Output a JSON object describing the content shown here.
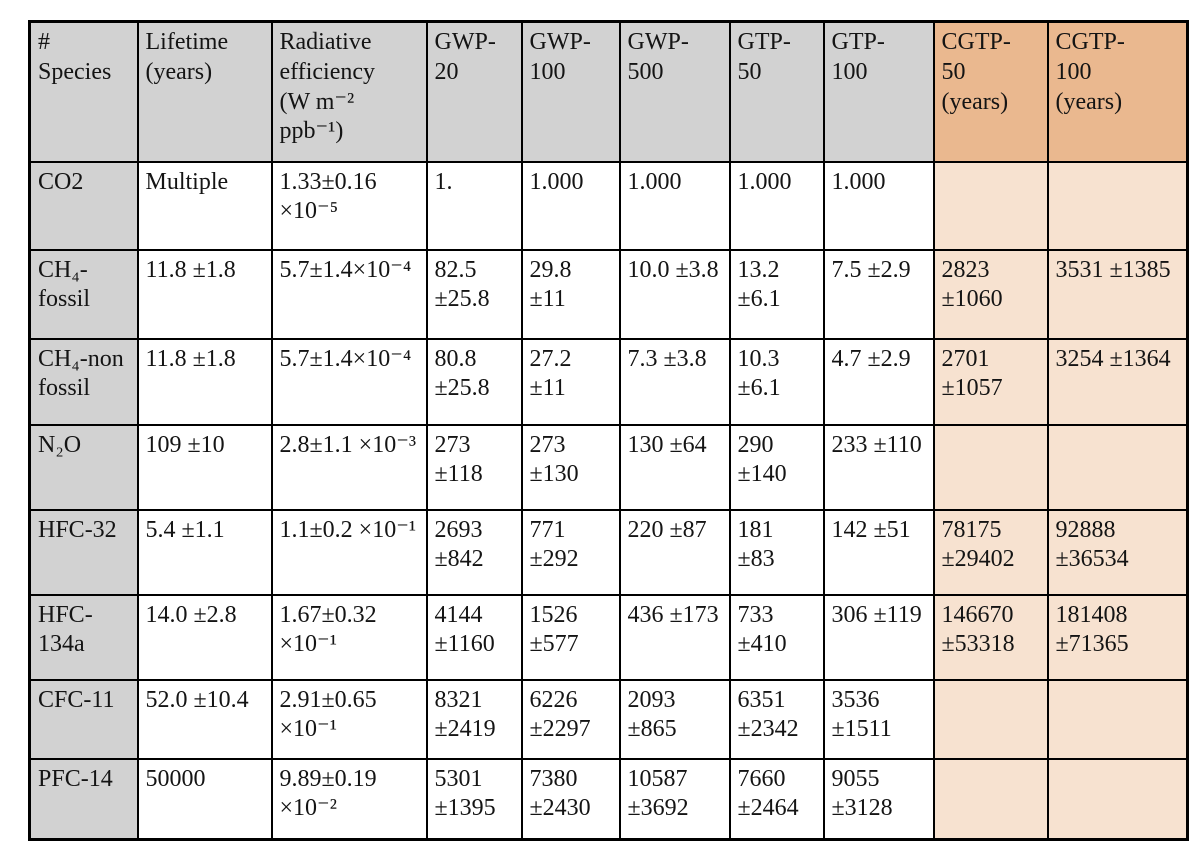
{
  "colors": {
    "header_gray": "#d2d2d2",
    "cgtp_header": "#eab88f",
    "cgtp_cell": "#f7e2d0",
    "border": "#000000"
  },
  "table": {
    "columns": [
      {
        "id": "species",
        "label": "#\nSpecies",
        "accent": false
      },
      {
        "id": "lifetime",
        "label": "Lifetime\n(years)",
        "accent": false
      },
      {
        "id": "radiative-efficiency",
        "label": "Radiative\nefficiency\n(W m⁻²\nppb⁻¹)",
        "accent": false
      },
      {
        "id": "gwp-20",
        "label": "GWP-\n20",
        "accent": false
      },
      {
        "id": "gwp-100",
        "label": "GWP-\n100",
        "accent": false
      },
      {
        "id": "gwp-500",
        "label": "GWP-\n500",
        "accent": false
      },
      {
        "id": "gtp-50",
        "label": "GTP-\n50",
        "accent": false
      },
      {
        "id": "gtp-100",
        "label": "GTP-\n100",
        "accent": false
      },
      {
        "id": "cgtp-50",
        "label": "CGTP-\n50\n(years)",
        "accent": true
      },
      {
        "id": "cgtp-100",
        "label": "CGTP-\n100\n(years)",
        "accent": true
      }
    ],
    "rows": [
      {
        "id": "co2",
        "cells": [
          "CO2",
          "Multiple",
          "1.33±0.16\n×10⁻⁵",
          "1.",
          "1.000",
          "1.000",
          "1.000",
          "1.000",
          "",
          ""
        ]
      },
      {
        "id": "ch4-fossil",
        "cells": [
          "CH₄-\nfossil",
          "11.8 ±1.8",
          "5.7±1.4×10⁻⁴",
          "82.5\n±25.8",
          "29.8\n±11",
          "10.0 ±3.8",
          "13.2\n±6.1",
          "7.5 ±2.9",
          "2823\n±1060",
          "3531 ±1385"
        ]
      },
      {
        "id": "ch4-non-fossil",
        "cells": [
          "CH₄-non\nfossil",
          "11.8 ±1.8",
          "5.7±1.4×10⁻⁴",
          "80.8\n±25.8",
          "27.2\n±11",
          "7.3 ±3.8",
          "10.3\n±6.1",
          "4.7 ±2.9",
          "2701\n±1057",
          "3254 ±1364"
        ]
      },
      {
        "id": "n2o",
        "cells": [
          "N₂O",
          "109 ±10",
          "2.8±1.1 ×10⁻³",
          "273\n±118",
          "273\n±130",
          "130 ±64",
          "290\n±140",
          "233 ±110",
          "",
          ""
        ]
      },
      {
        "id": "hfc-32",
        "cells": [
          "HFC-32",
          "5.4 ±1.1",
          "1.1±0.2 ×10⁻¹",
          "2693\n±842",
          "771\n±292",
          "220 ±87",
          "181\n±83",
          "142 ±51",
          "78175\n±29402",
          "92888\n±36534"
        ]
      },
      {
        "id": "hfc-134a",
        "cells": [
          "HFC-\n134a",
          "14.0 ±2.8",
          "1.67±0.32\n×10⁻¹",
          "4144\n±1160",
          "1526\n±577",
          "436 ±173",
          "733\n±410",
          "306 ±119",
          "146670\n±53318",
          "181408\n±71365"
        ]
      },
      {
        "id": "cfc-11",
        "cells": [
          "CFC-11",
          "52.0 ±10.4",
          "2.91±0.65\n×10⁻¹",
          "8321\n±2419",
          "6226\n±2297",
          "2093\n±865",
          "6351\n±2342",
          "3536\n±1511",
          "",
          ""
        ]
      },
      {
        "id": "pfc-14",
        "cells": [
          "PFC-14",
          "50000",
          "9.89±0.19\n×10⁻²",
          "5301\n±1395",
          "7380\n±2430",
          "10587\n±3692",
          "7660\n±2464",
          "9055\n±3128",
          "",
          ""
        ]
      }
    ]
  }
}
